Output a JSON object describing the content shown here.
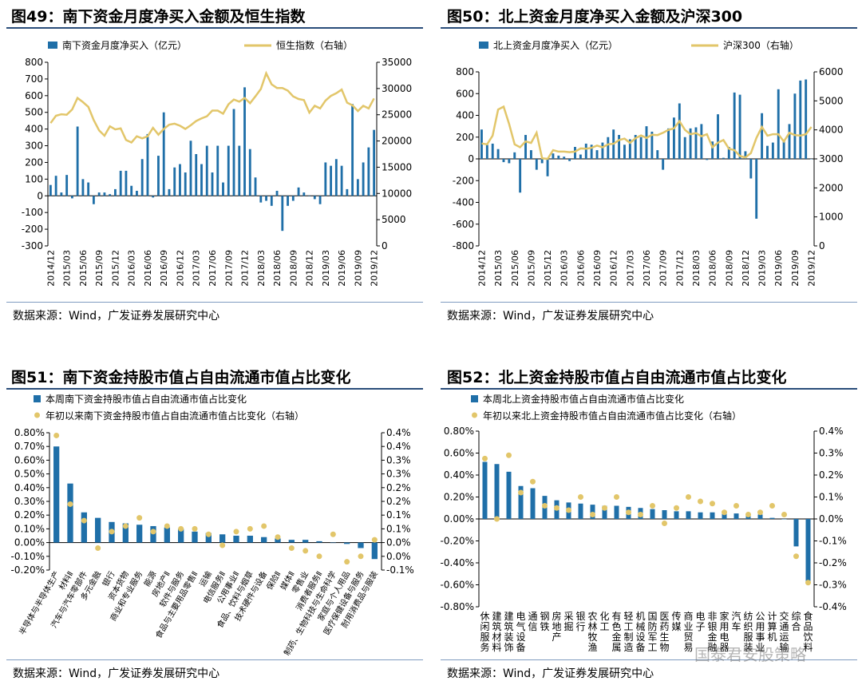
{
  "colors": {
    "bar": "#1f6fa8",
    "line": "#e2c66a",
    "rule": "#2a4d7a"
  },
  "chart_data": [
    {
      "type": "bar",
      "id": "fig49",
      "title": "图49：南下资金月度净买入金额及恒生指数",
      "series_names": [
        "南下资金月度净买入（亿元）",
        "恒生指数（右轴）"
      ],
      "yleft": [
        -300,
        800
      ],
      "yleft_ticks": [
        -300,
        -200,
        -100,
        0,
        100,
        200,
        300,
        400,
        500,
        600,
        700,
        800
      ],
      "yright": [
        0,
        35000
      ],
      "yright_ticks": [
        0,
        5000,
        10000,
        15000,
        20000,
        25000,
        30000,
        35000
      ],
      "x_ticks": [
        "2014/12",
        "2015/03",
        "2015/06",
        "2015/09",
        "2015/12",
        "2016/03",
        "2016/06",
        "2016/09",
        "2016/12",
        "2017/03",
        "2017/06",
        "2017/09",
        "2017/12",
        "2018/03",
        "2018/06",
        "2018/09",
        "2018/12",
        "2019/03",
        "2019/06",
        "2019/09",
        "2019/12"
      ],
      "bars": [
        65,
        120,
        20,
        125,
        -15,
        415,
        100,
        80,
        -50,
        20,
        20,
        10,
        40,
        150,
        150,
        60,
        30,
        220,
        370,
        -10,
        240,
        500,
        40,
        170,
        190,
        140,
        330,
        250,
        190,
        300,
        140,
        300,
        80,
        300,
        520,
        300,
        650,
        280,
        110,
        -40,
        -30,
        -60,
        30,
        -210,
        -60,
        -30,
        50,
        20,
        0,
        -20,
        -50,
        200,
        180,
        220,
        180,
        40,
        550,
        100,
        200,
        290,
        395
      ],
      "line": [
        23400,
        24800,
        25100,
        25000,
        26000,
        28200,
        27400,
        26500,
        24000,
        22000,
        21000,
        22800,
        22200,
        22400,
        20200,
        19700,
        20900,
        20500,
        20900,
        22500,
        21200,
        22300,
        23100,
        23300,
        22900,
        22300,
        23000,
        23800,
        24300,
        24700,
        25800,
        25800,
        25200,
        27000,
        27900,
        27500,
        28200,
        27200,
        28500,
        29900,
        32900,
        30800,
        30100,
        30100,
        29600,
        28500,
        28000,
        27800,
        25400,
        26700,
        26200,
        27700,
        28600,
        29100,
        29800,
        27300,
        26800,
        25700,
        26700,
        26200,
        28100
      ]
    },
    {
      "type": "bar",
      "id": "fig50",
      "title": "图50：北上资金月度净买入金额及沪深300",
      "series_names": [
        "北上资金月度净买入（亿元）",
        "沪深300（右轴）"
      ],
      "yleft": [
        -800,
        800
      ],
      "yleft_ticks": [
        -800,
        -600,
        -400,
        -200,
        0,
        200,
        400,
        600,
        800
      ],
      "yright": [
        0,
        6000
      ],
      "yright_ticks": [
        0,
        1000,
        2000,
        3000,
        4000,
        5000,
        6000
      ],
      "x_ticks": [
        "2014/12",
        "2015/03",
        "2015/06",
        "2015/09",
        "2015/12",
        "2016/03",
        "2016/06",
        "2016/09",
        "2016/12",
        "2017/03",
        "2017/06",
        "2017/09",
        "2017/12",
        "2018/03",
        "2018/06",
        "2018/09",
        "2018/12",
        "2019/03",
        "2019/06",
        "2019/09",
        "2019/12"
      ],
      "bars": [
        270,
        130,
        140,
        90,
        -30,
        -40,
        60,
        -310,
        220,
        80,
        -100,
        -40,
        -160,
        50,
        30,
        20,
        -20,
        110,
        40,
        140,
        130,
        80,
        150,
        200,
        270,
        220,
        130,
        180,
        220,
        200,
        300,
        250,
        80,
        -100,
        280,
        380,
        510,
        200,
        280,
        290,
        320,
        -10,
        160,
        410,
        10,
        110,
        610,
        590,
        70,
        -180,
        -550,
        420,
        120,
        150,
        640,
        170,
        320,
        600,
        720,
        730,
        0
      ],
      "line": [
        3530,
        3500,
        3800,
        4700,
        4800,
        4200,
        3500,
        3400,
        3600,
        3550,
        3900,
        3020,
        3000,
        3300,
        3250,
        3250,
        3230,
        3250,
        3360,
        3350,
        3380,
        3460,
        3400,
        3500,
        3520,
        3650,
        3700,
        3550,
        3710,
        3810,
        3720,
        3830,
        3820,
        3900,
        4000,
        4050,
        4300,
        4000,
        3850,
        3890,
        3780,
        3850,
        3400,
        3560,
        3650,
        3350,
        3300,
        3100,
        3050,
        3200,
        3720,
        4100,
        3800,
        3850,
        3850,
        3600,
        3900,
        3820,
        3800,
        3850,
        4100
      ]
    },
    {
      "type": "bar",
      "id": "fig51",
      "title": "图51：南下资金持股市值占自由流通市值占比变化",
      "series_names": [
        "本周南下资金持股市值占自由流通市值占比变化",
        "年初以来南下资金持股市值占自由流通市值占比变化（右轴）"
      ],
      "yleft": [
        -0.2,
        0.8
      ],
      "yleft_ticks": [
        "-0.20%",
        "-0.10%",
        "0.00%",
        "0.10%",
        "0.20%",
        "0.30%",
        "0.40%",
        "0.50%",
        "0.60%",
        "0.70%",
        "0.80%"
      ],
      "yright": [
        -0.1,
        0.4
      ],
      "yright_ticks": [
        "-0.1%",
        "0.0%",
        "0.0%",
        "0.1%",
        "0.1%",
        "0.2%",
        "0.2%",
        "0.3%",
        "0.3%",
        "0.4%",
        "0.4%"
      ],
      "categories": [
        "半导体与半导体生产",
        "材料Ⅱ",
        "汽车与汽车零部件",
        "多元金融",
        "银行",
        "资本货物",
        "商业和专业服务",
        "能源",
        "房地产Ⅱ",
        "软件与服务",
        "食品与主要用品零售Ⅱ",
        "运输",
        "电信服务Ⅱ",
        "公用事业Ⅱ",
        "食品、饮料与烟草",
        "技术硬件与设备",
        "保险Ⅱ",
        "媒体Ⅱ",
        "零售业",
        "消费者服务Ⅱ",
        "制药、生物科技与生命科学",
        "家庭与个人用品",
        "医疗保健设备与服务",
        "耐用消费品与服装"
      ],
      "values": [
        0.7,
        0.43,
        0.22,
        0.18,
        0.15,
        0.14,
        0.13,
        0.12,
        0.11,
        0.1,
        0.08,
        0.07,
        0.06,
        0.05,
        0.05,
        0.04,
        0.03,
        0.02,
        0.02,
        0.01,
        0.0,
        -0.01,
        -0.04,
        -0.12
      ],
      "values_right": [
        0.39,
        0.14,
        0.08,
        -0.02,
        0.04,
        0.06,
        0.09,
        0.04,
        0.06,
        0.05,
        0.05,
        0.03,
        -0.01,
        0.04,
        0.05,
        0.06,
        0.02,
        -0.02,
        -0.03,
        -0.05,
        0.03,
        -0.07,
        -0.05,
        0.01
      ]
    },
    {
      "type": "bar",
      "id": "fig52",
      "title": "图52：北上资金持股市值占自由流通市值占比变化",
      "series_names": [
        "本周北上资金持股市值占自由流通市值占比变化",
        "年初以来北上资金持股市值占自由流通市值占比变化（右轴）"
      ],
      "yleft": [
        -0.8,
        0.8
      ],
      "yleft_ticks": [
        "-0.80%",
        "-0.60%",
        "-0.40%",
        "-0.20%",
        "0.00%",
        "0.20%",
        "0.40%",
        "0.60%",
        "0.80%"
      ],
      "yright": [
        -0.4,
        0.4
      ],
      "yright_ticks": [
        "-0.4%",
        "-0.3%",
        "-0.2%",
        "-0.1%",
        "0.0%",
        "0.1%",
        "0.2%",
        "0.3%",
        "0.4%"
      ],
      "categories": [
        "休闲服务",
        "建筑材料",
        "建筑装饰",
        "电气设备",
        "通信",
        "钢铁",
        "房地产",
        "采掘",
        "银行",
        "农林牧渔",
        "化工",
        "有色金属",
        "轻工制造",
        "机械设备",
        "国防军工",
        "医药生物",
        "传媒",
        "商业贸易",
        "电子",
        "非银金融",
        "家用电器",
        "汽车",
        "纺织服装",
        "公用事业",
        "计算机",
        "交通运输",
        "综合",
        "食品饮料"
      ],
      "values": [
        0.52,
        0.5,
        0.43,
        0.3,
        0.28,
        0.21,
        0.17,
        0.15,
        0.14,
        0.13,
        0.12,
        0.12,
        0.11,
        0.1,
        0.09,
        0.08,
        0.07,
        0.07,
        0.06,
        0.06,
        0.06,
        0.05,
        0.05,
        0.04,
        0.01,
        0.0,
        -0.25,
        -0.58
      ],
      "values_right": [
        0.275,
        0.0,
        0.29,
        0.12,
        0.17,
        0.06,
        0.05,
        0.04,
        0.1,
        0.02,
        0.05,
        0.1,
        0.03,
        0.02,
        0.06,
        -0.02,
        0.05,
        0.1,
        0.08,
        0.07,
        0.03,
        0.06,
        0.02,
        0.03,
        0.06,
        0.02,
        -0.17,
        -0.29
      ]
    }
  ],
  "source_text": "数据来源：Wind，广发证券发展研究中心",
  "watermark": "国泰君安股策略"
}
